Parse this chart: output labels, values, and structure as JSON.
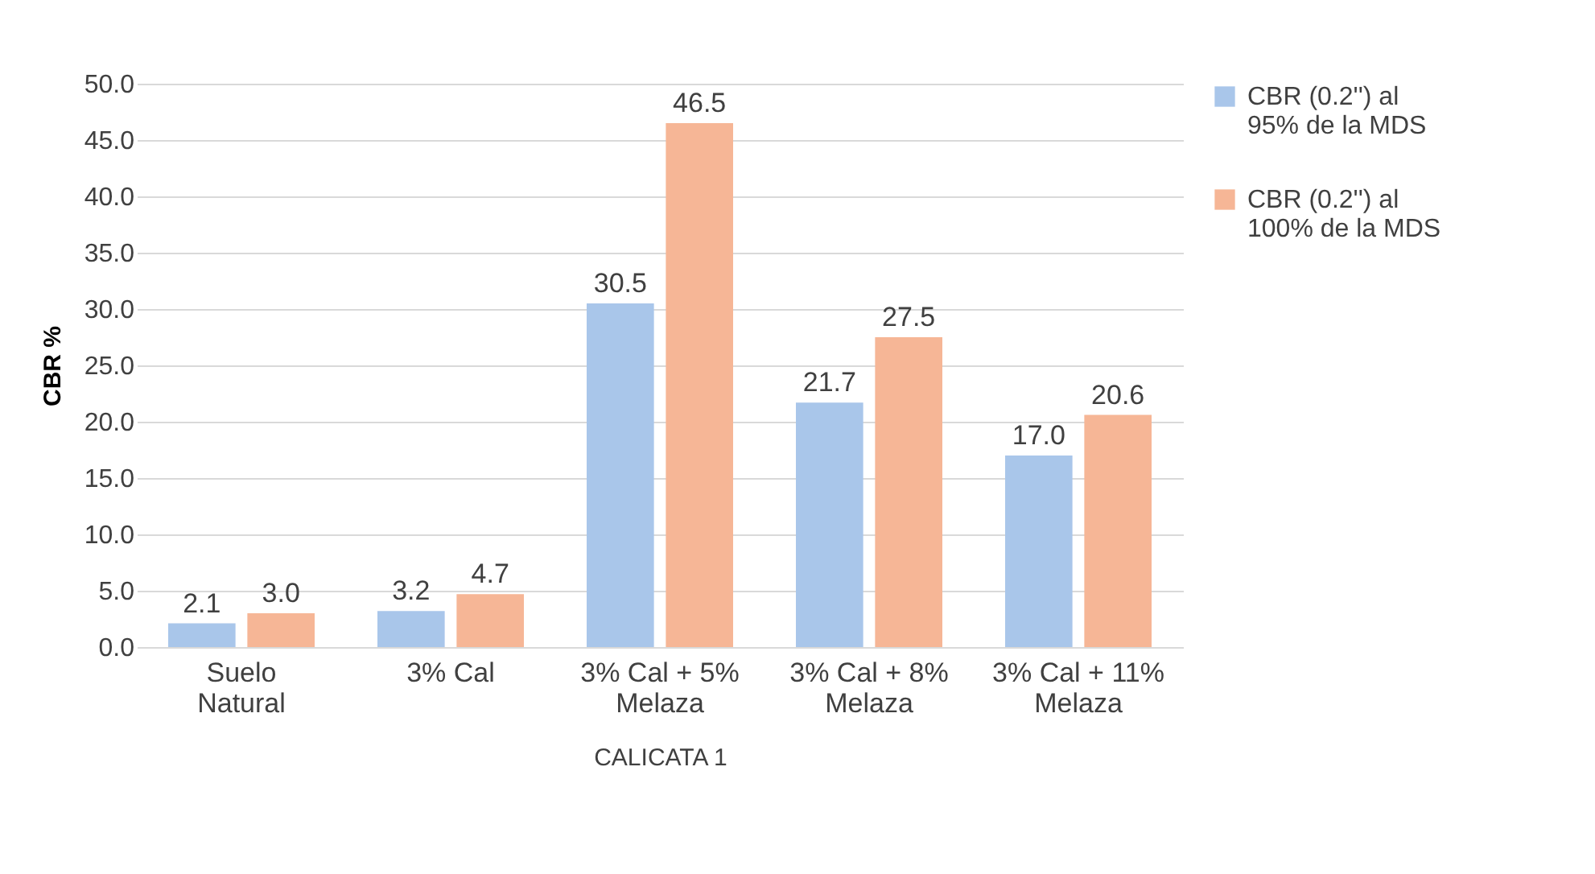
{
  "chart_data": {
    "type": "bar",
    "xlabel": "CALICATA 1",
    "ylabel": "CBR %",
    "categories": [
      "Suelo Natural",
      "3% Cal",
      "3% Cal + 5% Melaza",
      "3% Cal + 8% Melaza",
      "3% Cal + 11% Melaza"
    ],
    "series": [
      {
        "name": "CBR (0.2'') al 95% de la MDS",
        "color": "#a9c6ea",
        "values": [
          2.1,
          3.2,
          30.5,
          21.7,
          17.0
        ],
        "value_labels": [
          "2.1",
          "3.2",
          "30.5",
          "21.7",
          "17.0"
        ]
      },
      {
        "name": "CBR (0.2'') al 100% de la MDS",
        "color": "#f6b696",
        "values": [
          3.0,
          4.7,
          46.5,
          27.5,
          20.6
        ],
        "value_labels": [
          "3.0",
          "4.7",
          "46.5",
          "27.5",
          "20.6"
        ]
      }
    ],
    "ylim": [
      0,
      50
    ],
    "yticks": [
      {
        "value": 0,
        "label": "0.0"
      },
      {
        "value": 5,
        "label": "5.0"
      },
      {
        "value": 10,
        "label": "10.0"
      },
      {
        "value": 15,
        "label": "15.0"
      },
      {
        "value": 20,
        "label": "20.0"
      },
      {
        "value": 25,
        "label": "25.0"
      },
      {
        "value": 30,
        "label": "30.0"
      },
      {
        "value": 35,
        "label": "35.0"
      },
      {
        "value": 40,
        "label": "40.0"
      },
      {
        "value": 45,
        "label": "45.0"
      },
      {
        "value": 50,
        "label": "50.0"
      }
    ],
    "grid": "y",
    "legend": "right"
  }
}
